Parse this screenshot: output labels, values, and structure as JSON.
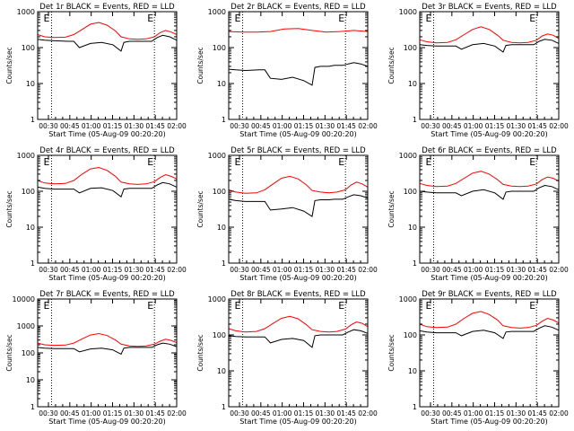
{
  "chart_data": [
    {
      "type": "line",
      "title": "Det 1r BLACK = Events, RED = LLD",
      "xlabel": "Start Time (05-Aug-09 00:20:20)",
      "ylabel": "Counts/sec",
      "yscale": "log",
      "ylim": [
        1,
        1000
      ],
      "xlim": [
        0,
        100
      ],
      "xticks": [
        "00:30",
        "00:45",
        "01:00",
        "01:15",
        "01:30",
        "01:45",
        "02:00"
      ],
      "yticks": [
        "1",
        "10",
        "100",
        "1000"
      ],
      "markers": [
        "E",
        "E"
      ],
      "vlines": [
        10,
        84
      ],
      "series": [
        {
          "name": "Events",
          "color": "#000000",
          "x": [
            0,
            5,
            12,
            22,
            26,
            30,
            38,
            46,
            54,
            60,
            62,
            66,
            68,
            72,
            76,
            82,
            86,
            90,
            95,
            100
          ],
          "y": [
            170,
            160,
            155,
            150,
            150,
            100,
            130,
            140,
            120,
            80,
            140,
            150,
            150,
            150,
            150,
            150,
            190,
            220,
            200,
            160
          ]
        },
        {
          "name": "LLD",
          "color": "#ff0000",
          "x": [
            0,
            5,
            12,
            20,
            26,
            32,
            38,
            44,
            50,
            56,
            60,
            66,
            72,
            78,
            84,
            88,
            92,
            96,
            100
          ],
          "y": [
            230,
            200,
            190,
            195,
            230,
            320,
            450,
            500,
            420,
            290,
            200,
            175,
            170,
            175,
            200,
            260,
            300,
            270,
            230
          ]
        }
      ]
    },
    {
      "type": "line",
      "title": "Det 2r BLACK = Events, RED = LLD",
      "xlabel": "Start Time (05-Aug-09 00:20:20)",
      "ylabel": "Counts/sec",
      "yscale": "log",
      "ylim": [
        1,
        1000
      ],
      "xlim": [
        0,
        100
      ],
      "xticks": [
        "00:30",
        "00:45",
        "01:00",
        "01:15",
        "01:30",
        "01:45",
        "02:00"
      ],
      "yticks": [
        "1",
        "10",
        "100",
        "1000"
      ],
      "markers": [
        "E",
        "E"
      ],
      "vlines": [
        10,
        84
      ],
      "series": [
        {
          "name": "Events",
          "color": "#000000",
          "x": [
            0,
            5,
            12,
            22,
            26,
            30,
            38,
            46,
            54,
            60,
            62,
            66,
            72,
            76,
            82,
            86,
            90,
            95,
            100
          ],
          "y": [
            25,
            24,
            23,
            24,
            24,
            14,
            13,
            15,
            12,
            9,
            28,
            30,
            30,
            32,
            32,
            35,
            38,
            35,
            30
          ]
        },
        {
          "name": "LLD",
          "color": "#ff0000",
          "x": [
            0,
            10,
            20,
            30,
            40,
            50,
            60,
            70,
            80,
            90,
            100
          ],
          "y": [
            280,
            270,
            270,
            280,
            330,
            340,
            300,
            270,
            280,
            300,
            280
          ]
        }
      ]
    },
    {
      "type": "line",
      "title": "Det 3r BLACK = Events, RED = LLD",
      "xlabel": "Start Time (05-Aug-09 00:20:20)",
      "ylabel": "Counts/sec",
      "yscale": "log",
      "ylim": [
        1,
        1000
      ],
      "xlim": [
        0,
        100
      ],
      "xticks": [
        "00:30",
        "00:45",
        "01:00",
        "01:15",
        "01:30",
        "01:45",
        "02:00"
      ],
      "yticks": [
        "1",
        "10",
        "100",
        "1000"
      ],
      "markers": [
        "E",
        "E"
      ],
      "vlines": [
        10,
        84
      ],
      "series": [
        {
          "name": "Events",
          "color": "#000000",
          "x": [
            0,
            5,
            12,
            22,
            26,
            30,
            38,
            46,
            54,
            60,
            62,
            66,
            72,
            76,
            82,
            86,
            90,
            95,
            100
          ],
          "y": [
            120,
            115,
            110,
            110,
            110,
            90,
            120,
            130,
            110,
            75,
            115,
            120,
            120,
            120,
            120,
            150,
            170,
            160,
            130
          ]
        },
        {
          "name": "LLD",
          "color": "#ff0000",
          "x": [
            0,
            5,
            12,
            20,
            26,
            32,
            38,
            44,
            50,
            56,
            60,
            66,
            72,
            78,
            84,
            88,
            92,
            96,
            100
          ],
          "y": [
            165,
            145,
            135,
            140,
            165,
            230,
            320,
            380,
            320,
            220,
            160,
            140,
            135,
            140,
            160,
            210,
            240,
            220,
            180
          ]
        }
      ]
    },
    {
      "type": "line",
      "title": "Det 4r BLACK = Events, RED = LLD",
      "xlabel": "Start Time (05-Aug-09 00:20:20)",
      "ylabel": "Counts/sec",
      "yscale": "log",
      "ylim": [
        1,
        1000
      ],
      "xlim": [
        0,
        100
      ],
      "xticks": [
        "00:30",
        "00:45",
        "01:00",
        "01:15",
        "01:30",
        "01:45",
        "02:00"
      ],
      "yticks": [
        "1",
        "10",
        "100",
        "1000"
      ],
      "markers": [
        "E",
        "E"
      ],
      "vlines": [
        10,
        84
      ],
      "series": [
        {
          "name": "Events",
          "color": "#000000",
          "x": [
            0,
            5,
            12,
            22,
            26,
            30,
            38,
            46,
            54,
            60,
            62,
            66,
            72,
            76,
            82,
            86,
            90,
            95,
            100
          ],
          "y": [
            130,
            120,
            115,
            115,
            115,
            90,
            120,
            125,
            105,
            70,
            115,
            120,
            120,
            120,
            120,
            150,
            175,
            160,
            130
          ]
        },
        {
          "name": "LLD",
          "color": "#ff0000",
          "x": [
            0,
            5,
            12,
            20,
            26,
            32,
            38,
            44,
            50,
            56,
            60,
            66,
            72,
            78,
            84,
            88,
            92,
            96,
            100
          ],
          "y": [
            200,
            170,
            160,
            165,
            200,
            300,
            420,
            460,
            380,
            260,
            180,
            160,
            155,
            160,
            185,
            240,
            290,
            260,
            220
          ]
        }
      ]
    },
    {
      "type": "line",
      "title": "Det 5r BLACK = Events, RED = LLD",
      "xlabel": "Start Time (05-Aug-09 00:20:20)",
      "ylabel": "Counts/sec",
      "yscale": "log",
      "ylim": [
        1,
        1000
      ],
      "xlim": [
        0,
        100
      ],
      "xticks": [
        "00:30",
        "00:45",
        "01:00",
        "01:15",
        "01:30",
        "01:45",
        "02:00"
      ],
      "yticks": [
        "1",
        "10",
        "100",
        "1000"
      ],
      "markers": [
        "E",
        "E"
      ],
      "vlines": [
        10,
        84
      ],
      "series": [
        {
          "name": "Events",
          "color": "#000000",
          "x": [
            0,
            5,
            12,
            22,
            26,
            30,
            38,
            46,
            54,
            60,
            62,
            66,
            72,
            76,
            82,
            86,
            90,
            95,
            100
          ],
          "y": [
            60,
            55,
            52,
            52,
            52,
            30,
            32,
            35,
            28,
            20,
            55,
            58,
            58,
            60,
            60,
            70,
            80,
            75,
            65
          ]
        },
        {
          "name": "LLD",
          "color": "#ff0000",
          "x": [
            0,
            5,
            12,
            20,
            26,
            32,
            38,
            44,
            50,
            56,
            60,
            66,
            72,
            78,
            84,
            88,
            92,
            96,
            100
          ],
          "y": [
            110,
            95,
            88,
            90,
            110,
            160,
            230,
            260,
            220,
            150,
            105,
            95,
            90,
            95,
            110,
            150,
            180,
            160,
            130
          ]
        }
      ]
    },
    {
      "type": "line",
      "title": "Det 6r BLACK = Events, RED = LLD",
      "xlabel": "Start Time (05-Aug-09 00:20:20)",
      "ylabel": "Counts/sec",
      "yscale": "log",
      "ylim": [
        1,
        1000
      ],
      "xlim": [
        0,
        100
      ],
      "xticks": [
        "00:30",
        "00:45",
        "01:00",
        "01:15",
        "01:30",
        "01:45",
        "02:00"
      ],
      "yticks": [
        "1",
        "10",
        "100",
        "1000"
      ],
      "markers": [
        "E",
        "E"
      ],
      "vlines": [
        10,
        84
      ],
      "series": [
        {
          "name": "Events",
          "color": "#000000",
          "x": [
            0,
            5,
            12,
            22,
            26,
            30,
            38,
            46,
            54,
            60,
            62,
            66,
            72,
            76,
            82,
            86,
            90,
            95,
            100
          ],
          "y": [
            100,
            95,
            90,
            90,
            90,
            75,
            100,
            110,
            90,
            60,
            95,
            100,
            100,
            100,
            100,
            125,
            145,
            135,
            110
          ]
        },
        {
          "name": "LLD",
          "color": "#ff0000",
          "x": [
            0,
            5,
            12,
            20,
            26,
            32,
            38,
            44,
            50,
            56,
            60,
            66,
            72,
            78,
            84,
            88,
            92,
            96,
            100
          ],
          "y": [
            165,
            145,
            135,
            140,
            165,
            230,
            320,
            360,
            300,
            210,
            155,
            140,
            135,
            140,
            160,
            210,
            250,
            230,
            190
          ]
        }
      ]
    },
    {
      "type": "line",
      "title": "Det 7r BLACK = Events, RED = LLD",
      "xlabel": "Start Time (05-Aug-09 00:20:20)",
      "ylabel": "Counts/sec",
      "yscale": "log",
      "ylim": [
        1,
        10000
      ],
      "xlim": [
        0,
        100
      ],
      "xticks": [
        "00:30",
        "00:45",
        "01:00",
        "01:15",
        "01:30",
        "01:45",
        "02:00"
      ],
      "yticks": [
        "1",
        "10",
        "100",
        "1000",
        "10000"
      ],
      "markers": [
        "E",
        "E"
      ],
      "vlines": [
        10,
        84
      ],
      "series": [
        {
          "name": "Events",
          "color": "#000000",
          "x": [
            0,
            5,
            12,
            22,
            26,
            30,
            38,
            46,
            54,
            60,
            62,
            66,
            72,
            76,
            82,
            86,
            90,
            95,
            100
          ],
          "y": [
            160,
            150,
            145,
            145,
            145,
            110,
            140,
            150,
            130,
            90,
            150,
            160,
            160,
            160,
            160,
            200,
            230,
            210,
            170
          ]
        },
        {
          "name": "LLD",
          "color": "#ff0000",
          "x": [
            0,
            5,
            12,
            20,
            26,
            32,
            38,
            44,
            50,
            56,
            60,
            66,
            72,
            78,
            84,
            88,
            92,
            96,
            100
          ],
          "y": [
            230,
            200,
            190,
            195,
            230,
            330,
            460,
            520,
            440,
            300,
            210,
            180,
            175,
            180,
            210,
            270,
            320,
            290,
            240
          ]
        }
      ]
    },
    {
      "type": "line",
      "title": "Det 8r BLACK = Events, RED = LLD",
      "xlabel": "Start Time (05-Aug-09 00:20:20)",
      "ylabel": "Counts/sec",
      "yscale": "log",
      "ylim": [
        1,
        1000
      ],
      "xlim": [
        0,
        100
      ],
      "xticks": [
        "00:30",
        "00:45",
        "01:00",
        "01:15",
        "01:30",
        "01:45",
        "02:00"
      ],
      "yticks": [
        "1",
        "10",
        "100",
        "1000"
      ],
      "markers": [
        "E",
        "E"
      ],
      "vlines": [
        10,
        84
      ],
      "series": [
        {
          "name": "Events",
          "color": "#000000",
          "x": [
            0,
            5,
            12,
            22,
            26,
            30,
            38,
            46,
            54,
            60,
            62,
            66,
            72,
            76,
            82,
            86,
            90,
            95,
            100
          ],
          "y": [
            95,
            90,
            88,
            88,
            88,
            60,
            75,
            80,
            70,
            45,
            95,
            100,
            100,
            100,
            100,
            120,
            140,
            130,
            110
          ]
        },
        {
          "name": "LLD",
          "color": "#ff0000",
          "x": [
            0,
            5,
            12,
            20,
            26,
            32,
            38,
            44,
            50,
            56,
            60,
            66,
            72,
            78,
            84,
            88,
            92,
            96,
            100
          ],
          "y": [
            150,
            130,
            120,
            125,
            150,
            210,
            290,
            330,
            280,
            190,
            140,
            125,
            120,
            125,
            145,
            190,
            230,
            210,
            170
          ]
        }
      ]
    },
    {
      "type": "line",
      "title": "Det 9r BLACK = Events, RED = LLD",
      "xlabel": "Start Time (05-Aug-09 00:20:20)",
      "ylabel": "Counts/sec",
      "yscale": "log",
      "ylim": [
        1,
        1000
      ],
      "xlim": [
        0,
        100
      ],
      "xticks": [
        "00:30",
        "00:45",
        "01:00",
        "01:15",
        "01:30",
        "01:45",
        "02:00"
      ],
      "yticks": [
        "1",
        "10",
        "100",
        "1000"
      ],
      "markers": [
        "E",
        "E"
      ],
      "vlines": [
        10,
        84
      ],
      "series": [
        {
          "name": "Events",
          "color": "#000000",
          "x": [
            0,
            5,
            12,
            22,
            26,
            30,
            38,
            46,
            54,
            60,
            62,
            66,
            72,
            76,
            82,
            86,
            90,
            95,
            100
          ],
          "y": [
            130,
            120,
            115,
            115,
            115,
            95,
            125,
            135,
            115,
            80,
            120,
            125,
            125,
            125,
            125,
            155,
            180,
            165,
            135
          ]
        },
        {
          "name": "LLD",
          "color": "#ff0000",
          "x": [
            0,
            5,
            12,
            20,
            26,
            32,
            38,
            44,
            50,
            56,
            60,
            66,
            72,
            78,
            84,
            88,
            92,
            96,
            100
          ],
          "y": [
            200,
            170,
            160,
            165,
            200,
            290,
            400,
            450,
            370,
            260,
            180,
            160,
            155,
            160,
            185,
            240,
            290,
            260,
            215
          ]
        }
      ]
    }
  ]
}
